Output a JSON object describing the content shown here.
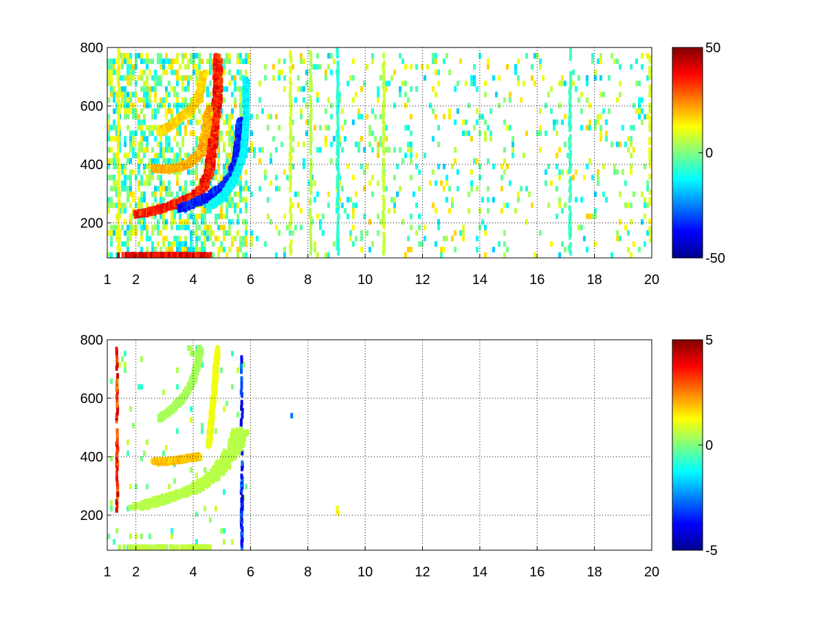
{
  "chart_data": [
    {
      "type": "heatmap",
      "title": "",
      "xlabel": "",
      "ylabel": "",
      "xlim": [
        1,
        20
      ],
      "ylim": [
        80,
        800
      ],
      "x_ticks": [
        {
          "value": 1,
          "label": "1"
        },
        {
          "value": 2,
          "label": "2"
        },
        {
          "value": 4,
          "label": "4"
        },
        {
          "value": 6,
          "label": "6"
        },
        {
          "value": 8,
          "label": "8"
        },
        {
          "value": 10,
          "label": "10"
        },
        {
          "value": 12,
          "label": "12"
        },
        {
          "value": 14,
          "label": "14"
        },
        {
          "value": 16,
          "label": "16"
        },
        {
          "value": 18,
          "label": "18"
        },
        {
          "value": 20,
          "label": "20"
        }
      ],
      "y_ticks": [
        {
          "value": 200,
          "label": "200"
        },
        {
          "value": 400,
          "label": "400"
        },
        {
          "value": 600,
          "label": "600"
        },
        {
          "value": 800,
          "label": "800"
        }
      ],
      "grid": true,
      "grid_style": "dotted",
      "colormap": "jet",
      "clim": [
        -50,
        50
      ],
      "colorbar_ticks": [
        {
          "value": 50,
          "label": "50"
        },
        {
          "value": 0,
          "label": "0"
        },
        {
          "value": -50,
          "label": "-50"
        }
      ],
      "features": [
        {
          "points": [
            [
              2.0,
              238
            ],
            [
              2.5,
              248
            ],
            [
              3.0,
              262
            ],
            [
              3.5,
              280
            ],
            [
              4.0,
              300
            ],
            [
              4.3,
              330
            ],
            [
              4.5,
              380
            ],
            [
              4.6,
              450
            ],
            [
              4.7,
              550
            ],
            [
              4.8,
              650
            ],
            [
              4.8,
              780
            ]
          ],
          "value": 38,
          "width": 0.1,
          "jitter": 0.6
        },
        {
          "points": [
            [
              3.5,
              258
            ],
            [
              4.0,
              278
            ],
            [
              4.5,
              300
            ],
            [
              5.0,
              330
            ],
            [
              5.3,
              370
            ],
            [
              5.5,
              430
            ],
            [
              5.6,
              500
            ],
            [
              5.6,
              560
            ]
          ],
          "value": -38,
          "width": 0.1,
          "jitter": 0.7
        },
        {
          "points": [
            [
              2.6,
              395
            ],
            [
              3.0,
              392
            ],
            [
              3.4,
              398
            ],
            [
              3.8,
              412
            ],
            [
              4.2,
              445
            ],
            [
              4.4,
              520
            ],
            [
              4.5,
              600
            ]
          ],
          "value": 22,
          "width": 0.08,
          "jitter": 0.7
        },
        {
          "points": [
            [
              2.8,
              520
            ],
            [
              3.2,
              545
            ],
            [
              3.6,
              575
            ],
            [
              4.0,
              610
            ],
            [
              4.2,
              660
            ],
            [
              4.3,
              720
            ]
          ],
          "value": 18,
          "width": 0.07,
          "jitter": 0.8
        },
        {
          "points": [
            [
              1.5,
              95
            ],
            [
              2.0,
              95
            ],
            [
              2.5,
              95
            ],
            [
              3.0,
              95
            ],
            [
              3.5,
              95
            ],
            [
              4.0,
              95
            ],
            [
              4.5,
              95
            ]
          ],
          "value": 42,
          "width": 0.12,
          "jitter": 0.5
        },
        {
          "points": [
            [
              4.6,
              270
            ],
            [
              5.0,
              300
            ],
            [
              5.4,
              360
            ],
            [
              5.7,
              440
            ],
            [
              5.8,
              560
            ],
            [
              5.8,
              700
            ]
          ],
          "value": -14,
          "width": 0.06,
          "jitter": 0.9
        }
      ],
      "stripes": [
        {
          "x": 1.35,
          "value": 14,
          "y_range": [
            80,
            800
          ]
        },
        {
          "x": 7.35,
          "value": 10,
          "y_range": [
            80,
            800
          ]
        },
        {
          "x": 8.05,
          "value": 6,
          "y_range": [
            80,
            800
          ]
        },
        {
          "x": 9.0,
          "value": -10,
          "y_range": [
            80,
            800
          ]
        },
        {
          "x": 10.6,
          "value": 8,
          "y_range": [
            80,
            800
          ]
        },
        {
          "x": 17.1,
          "value": -8,
          "y_range": [
            80,
            800
          ]
        },
        {
          "x": 19.9,
          "value": 12,
          "y_range": [
            80,
            800
          ]
        }
      ],
      "noise": {
        "x_range": [
          1,
          20
        ],
        "y_range": [
          80,
          800
        ],
        "dense_until_x": 5.8,
        "density_low_x": 0.55,
        "density_high_x": 0.12,
        "value_spread": 18
      }
    },
    {
      "type": "heatmap",
      "title": "",
      "xlabel": "",
      "ylabel": "",
      "xlim": [
        1,
        20
      ],
      "ylim": [
        80,
        800
      ],
      "x_ticks": [
        {
          "value": 1,
          "label": "1"
        },
        {
          "value": 2,
          "label": "2"
        },
        {
          "value": 4,
          "label": "4"
        },
        {
          "value": 6,
          "label": "6"
        },
        {
          "value": 8,
          "label": "8"
        },
        {
          "value": 10,
          "label": "10"
        },
        {
          "value": 12,
          "label": "12"
        },
        {
          "value": 14,
          "label": "14"
        },
        {
          "value": 16,
          "label": "16"
        },
        {
          "value": 18,
          "label": "18"
        },
        {
          "value": 20,
          "label": "20"
        }
      ],
      "y_ticks": [
        {
          "value": 200,
          "label": "200"
        },
        {
          "value": 400,
          "label": "400"
        },
        {
          "value": 600,
          "label": "600"
        },
        {
          "value": 800,
          "label": "800"
        }
      ],
      "grid": true,
      "grid_style": "dotted",
      "colormap": "jet",
      "clim": [
        -5,
        5
      ],
      "colorbar_ticks": [
        {
          "value": 5,
          "label": "5"
        },
        {
          "value": 0,
          "label": "0"
        },
        {
          "value": -5,
          "label": "-5"
        }
      ],
      "features": [
        {
          "points": [
            [
              2.0,
              238
            ],
            [
              2.5,
              250
            ],
            [
              3.0,
              265
            ],
            [
              3.5,
              282
            ],
            [
              4.0,
              300
            ],
            [
              4.5,
              330
            ],
            [
              5.0,
              380
            ],
            [
              5.4,
              440
            ],
            [
              5.6,
              500
            ]
          ],
          "value": 0.6,
          "width": 0.18,
          "jitter": 0.55
        },
        {
          "points": [
            [
              2.6,
              395
            ],
            [
              3.0,
              392
            ],
            [
              3.4,
              398
            ],
            [
              3.8,
              405
            ],
            [
              4.2,
              410
            ]
          ],
          "value": 2.0,
          "width": 0.08,
          "jitter": 0.45
        },
        {
          "points": [
            [
              2.8,
              540
            ],
            [
              3.2,
              570
            ],
            [
              3.6,
              610
            ],
            [
              3.9,
              660
            ],
            [
              4.1,
              720
            ],
            [
              4.2,
              780
            ]
          ],
          "value": 0.4,
          "width": 0.06,
          "jitter": 0.6
        },
        {
          "points": [
            [
              1.6,
              95
            ],
            [
              2.2,
              95
            ],
            [
              2.8,
              95
            ],
            [
              3.4,
              95
            ],
            [
              4.0,
              95
            ],
            [
              4.5,
              95
            ]
          ],
          "value": 0.7,
          "width": 0.1,
          "jitter": 0.4
        },
        {
          "points": [
            [
              4.5,
              450
            ],
            [
              4.6,
              550
            ],
            [
              4.7,
              650
            ],
            [
              4.8,
              780
            ]
          ],
          "value": 1.2,
          "width": 0.05,
          "jitter": 0.6
        }
      ],
      "stripes": [
        {
          "x": 1.3,
          "value": 4.0,
          "y_range": [
            200,
            780
          ]
        },
        {
          "x": 5.65,
          "value": -4.0,
          "y_range": [
            90,
            750
          ]
        },
        {
          "x": 7.4,
          "value": -3.0,
          "y_range": [
            550,
            570
          ]
        },
        {
          "x": 9.0,
          "value": 1.5,
          "y_range": [
            215,
            250
          ]
        }
      ],
      "noise": {
        "x_range": [
          1,
          20
        ],
        "y_range": [
          80,
          800
        ],
        "dense_until_x": 5.8,
        "density_low_x": 0.05,
        "density_high_x": 0.0,
        "value_spread": 1.0
      }
    }
  ]
}
